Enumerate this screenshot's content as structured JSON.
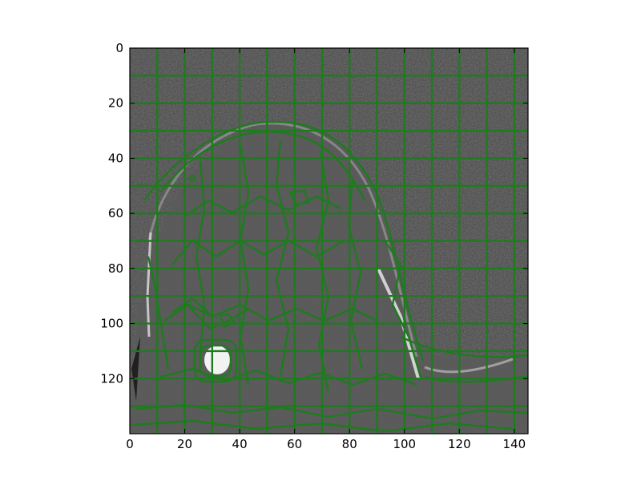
{
  "figure": {
    "image_description_hidden": "",
    "x_axis": {
      "min": 0,
      "max": 145,
      "ticks": [
        0,
        20,
        40,
        60,
        80,
        100,
        120,
        140
      ]
    },
    "y_axis": {
      "min": 0,
      "max": 140,
      "inverted": true,
      "ticks": [
        0,
        20,
        40,
        60,
        80,
        100,
        120
      ]
    },
    "overlay_color": "#1e7b1e",
    "background_gray": "#4b4b4b"
  }
}
